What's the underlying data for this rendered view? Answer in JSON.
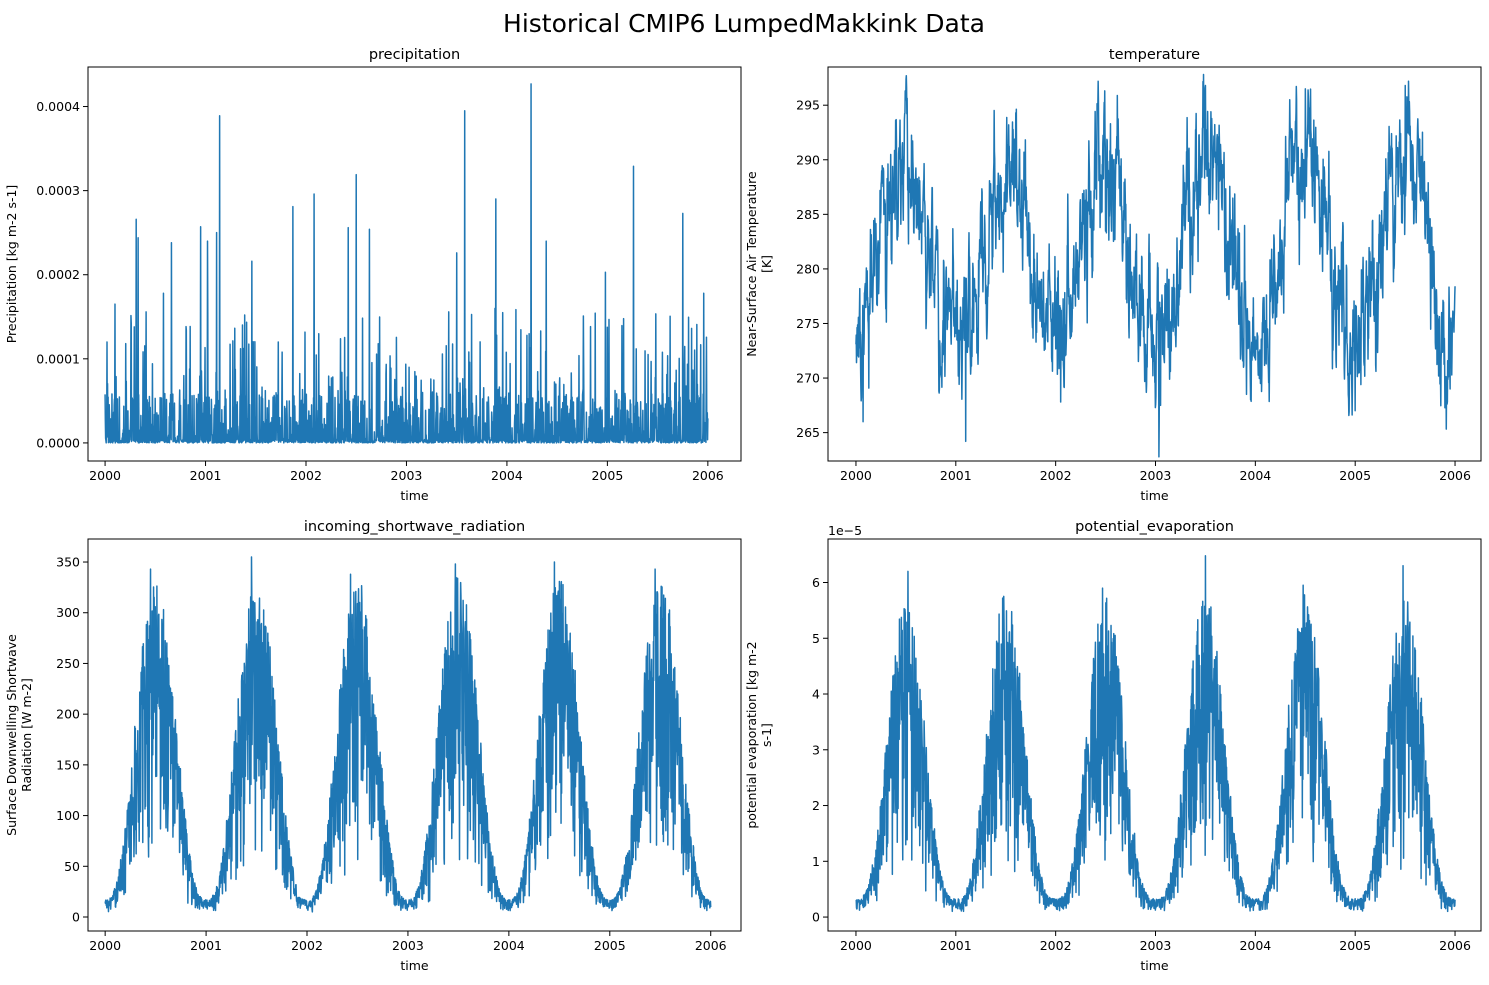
{
  "figure_title": "Historical CMIP6 LumpedMakkink Data",
  "colors": {
    "series": "#1f77b4",
    "axes": "#000000",
    "background": "#ffffff"
  },
  "chart_data": [
    {
      "type": "line",
      "title": "precipitation",
      "xlabel": "time",
      "ylabel_lines": [
        "Precipitation [kg m-2 s-1]"
      ],
      "offset_text": "",
      "xlim": [
        1999.83,
        2006.33
      ],
      "ylim": [
        -2.15e-05,
        0.000447
      ],
      "xticks": [
        2000,
        2001,
        2002,
        2003,
        2004,
        2005,
        2006
      ],
      "xtick_labels": [
        "2000",
        "2001",
        "2002",
        "2003",
        "2004",
        "2005",
        "2006"
      ],
      "yticks": [
        0,
        0.0001,
        0.0002,
        0.0003,
        0.0004
      ],
      "ytick_labels": [
        "0.0000",
        "0.0001",
        "0.0002",
        "0.0003",
        "0.0004"
      ],
      "series": [
        {
          "x_range": [
            2000.0,
            2006.0
          ],
          "peaks": [
            [
              2000.02,
              0.00012
            ],
            [
              2000.1,
              0.000165
            ],
            [
              2000.31,
              0.000266
            ],
            [
              2000.33,
              0.000244
            ],
            [
              2000.58,
              0.000178
            ],
            [
              2000.66,
              0.000238
            ],
            [
              2000.95,
              0.000257
            ],
            [
              2001.02,
              0.00024
            ],
            [
              2001.11,
              0.00025
            ],
            [
              2001.14,
              0.000389
            ],
            [
              2001.46,
              0.000216
            ],
            [
              2001.87,
              0.000281
            ],
            [
              2002.08,
              0.000296
            ],
            [
              2002.42,
              0.000256
            ],
            [
              2002.5,
              0.000319
            ],
            [
              2002.63,
              0.000254
            ],
            [
              2003.5,
              0.000226
            ],
            [
              2003.58,
              0.000395
            ],
            [
              2003.89,
              0.00029
            ],
            [
              2004.24,
              0.000427
            ],
            [
              2004.39,
              0.00024
            ],
            [
              2004.98,
              0.000203
            ],
            [
              2005.26,
              0.000329
            ],
            [
              2005.75,
              0.000273
            ],
            [
              2005.96,
              0.000178
            ]
          ]
        }
      ]
    },
    {
      "type": "line",
      "title": "temperature",
      "xlabel": "time",
      "ylabel_lines": [
        "Near-Surface Air Temperature",
        "[K]"
      ],
      "offset_text": "",
      "xlim": [
        1999.72,
        2006.26
      ],
      "ylim": [
        262.4,
        298.5
      ],
      "xticks": [
        2000,
        2001,
        2002,
        2003,
        2004,
        2005,
        2006
      ],
      "xtick_labels": [
        "2000",
        "2001",
        "2002",
        "2003",
        "2004",
        "2005",
        "2006"
      ],
      "yticks": [
        265,
        270,
        275,
        280,
        285,
        290,
        295
      ],
      "ytick_labels": [
        "265",
        "270",
        "275",
        "280",
        "285",
        "290",
        "295"
      ],
      "series": [
        {
          "x_range": [
            2000.0,
            2006.0
          ],
          "peaks": [
            [
              2000.07,
              266.0
            ],
            [
              2000.5,
              295.5
            ],
            [
              2001.1,
              264.2
            ],
            [
              2001.53,
              293.2
            ],
            [
              2002.05,
              267.8
            ],
            [
              2002.55,
              293.3
            ],
            [
              2003.05,
              267.5
            ],
            [
              2003.5,
              296.8
            ],
            [
              2004.05,
              269.5
            ],
            [
              2004.5,
              296.5
            ],
            [
              2005.0,
              267.0
            ],
            [
              2005.5,
              296.8
            ],
            [
              2005.95,
              269.0
            ]
          ]
        }
      ]
    },
    {
      "type": "line",
      "title": "incoming_shortwave_radiation",
      "xlabel": "time",
      "ylabel_lines": [
        "Surface Downwelling Shortwave",
        "Radiation [W m-2]"
      ],
      "offset_text": "",
      "xlim": [
        1999.83,
        2006.3
      ],
      "ylim": [
        -13.8,
        372.7
      ],
      "xticks": [
        2000,
        2001,
        2002,
        2003,
        2004,
        2005,
        2006
      ],
      "xtick_labels": [
        "2000",
        "2001",
        "2002",
        "2003",
        "2004",
        "2005",
        "2006"
      ],
      "yticks": [
        0,
        50,
        100,
        150,
        200,
        250,
        300,
        350
      ],
      "ytick_labels": [
        "0",
        "50",
        "100",
        "150",
        "200",
        "250",
        "300",
        "350"
      ],
      "series": [
        {
          "x_range": [
            2000.0,
            2006.0
          ],
          "peaks": [
            [
              2000.45,
              343.0
            ],
            [
              2001.45,
              355.0
            ],
            [
              2002.43,
              338.0
            ],
            [
              2003.47,
              348.0
            ],
            [
              2004.45,
              350.0
            ],
            [
              2005.45,
              343.0
            ]
          ]
        }
      ]
    },
    {
      "type": "line",
      "title": "potential_evaporation",
      "xlabel": "time",
      "ylabel_lines": [
        "potential evaporation [kg m-2",
        "s-1]"
      ],
      "offset_text": "1e−5",
      "xlim": [
        1999.72,
        2006.26
      ],
      "ylim": [
        -0.25,
        6.78
      ],
      "xticks": [
        2000,
        2001,
        2002,
        2003,
        2004,
        2005,
        2006
      ],
      "xtick_labels": [
        "2000",
        "2001",
        "2002",
        "2003",
        "2004",
        "2005",
        "2006"
      ],
      "yticks": [
        0,
        1,
        2,
        3,
        4,
        5,
        6
      ],
      "ytick_labels": [
        "0",
        "1",
        "2",
        "3",
        "4",
        "5",
        "6"
      ],
      "series": [
        {
          "x_range": [
            2000.0,
            2006.0
          ],
          "peaks": [
            [
              2000.52,
              6.2
            ],
            [
              2001.48,
              5.75
            ],
            [
              2002.47,
              5.9
            ],
            [
              2003.5,
              6.48
            ],
            [
              2004.48,
              5.95
            ],
            [
              2005.48,
              6.3
            ]
          ]
        }
      ]
    }
  ]
}
